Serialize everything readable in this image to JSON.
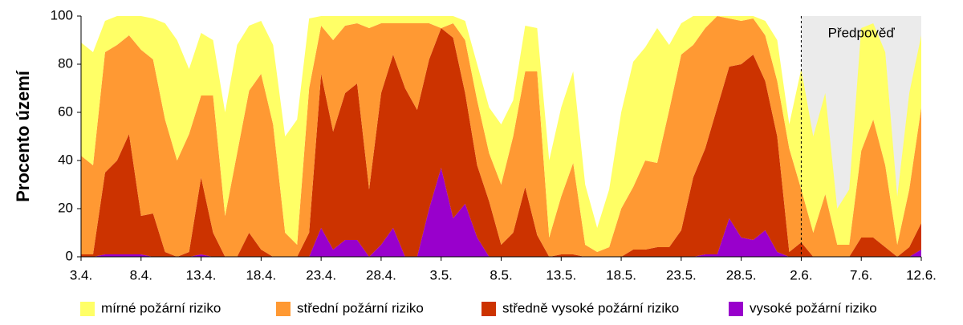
{
  "chart_data": {
    "type": "stacked-area",
    "y_label": "Procento území",
    "categories": [
      "3.4.",
      null,
      null,
      null,
      null,
      "8.4.",
      null,
      null,
      null,
      null,
      "13.4.",
      null,
      null,
      null,
      null,
      "18.4.",
      null,
      null,
      null,
      null,
      "23.4.",
      null,
      null,
      null,
      null,
      "28.4.",
      null,
      null,
      null,
      null,
      "3.5.",
      null,
      null,
      null,
      null,
      "8.5.",
      null,
      null,
      null,
      null,
      "13.5.",
      null,
      null,
      null,
      null,
      "18.5.",
      null,
      null,
      null,
      null,
      "23.5.",
      null,
      null,
      null,
      null,
      "28.5.",
      null,
      null,
      null,
      null,
      "2.6.",
      null,
      null,
      null,
      null,
      "7.6.",
      null,
      null,
      null,
      null,
      "12.6."
    ],
    "series": [
      {
        "name": "mírné požární riziko",
        "color": "#ffff66",
        "values": [
          47,
          47,
          13,
          12,
          8,
          14,
          17,
          40,
          50,
          27,
          26,
          23,
          43,
          45,
          27,
          22,
          33,
          40,
          52,
          29,
          4,
          10,
          4,
          3,
          5,
          3,
          3,
          3,
          3,
          3,
          5,
          3,
          8,
          15,
          19,
          25,
          15,
          19,
          18,
          32,
          37,
          38,
          25,
          10,
          24,
          40,
          52,
          47,
          56,
          27,
          13,
          12,
          5,
          0,
          1,
          2,
          1,
          6,
          17,
          10,
          50,
          40,
          42,
          15,
          23,
          51,
          40,
          47,
          20,
          40,
          30
        ]
      },
      {
        "name": "střední požární riziko",
        "color": "#ff9933",
        "values": [
          41,
          37,
          50,
          48,
          41,
          69,
          64,
          55,
          40,
          49,
          34,
          57,
          17,
          43,
          59,
          73,
          55,
          10,
          5,
          60,
          20,
          38,
          28,
          25,
          67,
          29,
          13,
          27,
          36,
          15,
          0,
          6,
          22,
          27,
          20,
          25,
          40,
          48,
          68,
          8,
          24,
          38,
          5,
          2,
          4,
          20,
          26,
          37,
          35,
          57,
          73,
          55,
          50,
          38,
          20,
          18,
          15,
          19,
          23,
          43,
          22,
          10,
          26,
          5,
          5,
          36,
          49,
          34,
          5,
          24,
          48
        ]
      },
      {
        "name": "středně vysoké požární riziko",
        "color": "#cc3300",
        "values": [
          1,
          1,
          34,
          39,
          50,
          16,
          18,
          2,
          0,
          2,
          32,
          10,
          0,
          0,
          10,
          3,
          0,
          0,
          0,
          10,
          64,
          49,
          61,
          65,
          28,
          63,
          72,
          70,
          61,
          62,
          58,
          75,
          46,
          30,
          23,
          5,
          10,
          29,
          9,
          0,
          1,
          1,
          0,
          0,
          0,
          0,
          3,
          3,
          4,
          4,
          11,
          33,
          44,
          61,
          63,
          72,
          77,
          62,
          48,
          2,
          6,
          0,
          0,
          0,
          0,
          8,
          8,
          4,
          0,
          4,
          11
        ]
      },
      {
        "name": "vysoké požární riziko",
        "color": "#9900cc",
        "values": [
          0,
          0,
          1,
          1,
          1,
          1,
          0,
          0,
          0,
          0,
          1,
          0,
          0,
          0,
          0,
          0,
          0,
          0,
          0,
          0,
          12,
          3,
          7,
          7,
          0,
          5,
          12,
          0,
          0,
          20,
          37,
          16,
          22,
          8,
          0,
          0,
          0,
          0,
          0,
          0,
          0,
          0,
          0,
          0,
          0,
          0,
          0,
          0,
          0,
          0,
          0,
          0,
          1,
          1,
          16,
          8,
          7,
          11,
          2,
          0,
          0,
          0,
          0,
          0,
          0,
          0,
          0,
          0,
          0,
          0,
          3
        ]
      }
    ],
    "ylim": [
      0,
      100
    ],
    "yticks": [
      0,
      20,
      40,
      60,
      80,
      100
    ],
    "forecast": {
      "label": "Předpověď",
      "start": "2.6."
    },
    "legend": "bottom"
  }
}
